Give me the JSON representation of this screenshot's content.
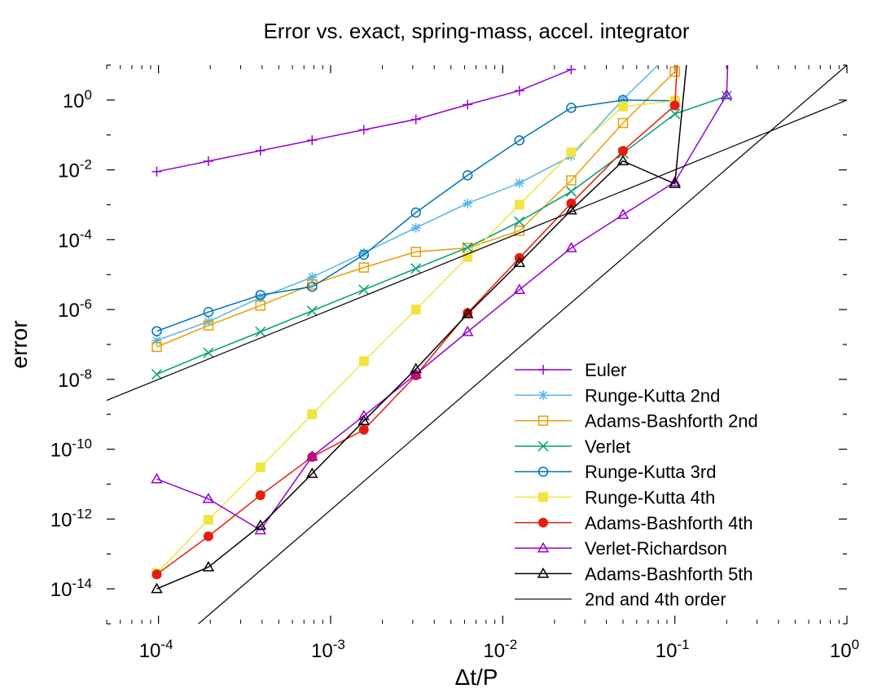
{
  "chart_data": {
    "type": "line",
    "title": "Error vs. exact, spring-mass, accel. integrator",
    "xlabel": "Δt/P",
    "ylabel": "error",
    "xscale": "log",
    "yscale": "log",
    "xlim": [
      5e-05,
      1
    ],
    "ylim": [
      1e-15,
      10
    ],
    "x_ticks": [
      {
        "value": 0.0001,
        "base": "10",
        "exp": "-4"
      },
      {
        "value": 0.001,
        "base": "10",
        "exp": "-3"
      },
      {
        "value": 0.01,
        "base": "10",
        "exp": "-2"
      },
      {
        "value": 0.1,
        "base": "10",
        "exp": "-1"
      },
      {
        "value": 1,
        "base": "10",
        "exp": "0"
      }
    ],
    "y_ticks": [
      {
        "value": 1e-14,
        "base": "10",
        "exp": "-14"
      },
      {
        "value": 1e-12,
        "base": "10",
        "exp": "-12"
      },
      {
        "value": 1e-10,
        "base": "10",
        "exp": "-10"
      },
      {
        "value": 1e-08,
        "base": "10",
        "exp": "-8"
      },
      {
        "value": 1e-06,
        "base": "10",
        "exp": "-6"
      },
      {
        "value": 0.0001,
        "base": "10",
        "exp": "-4"
      },
      {
        "value": 0.01,
        "base": "10",
        "exp": "-2"
      },
      {
        "value": 1,
        "base": "10",
        "exp": "0"
      }
    ],
    "grid": false,
    "legend_position": "bottom-right",
    "series": [
      {
        "name": "Euler",
        "color": "#9400d3",
        "marker": "plus",
        "points": [
          [
            9.77e-05,
            0.0089
          ],
          [
            0.000195,
            0.0178
          ],
          [
            0.000391,
            0.0355
          ],
          [
            0.000781,
            0.0708
          ],
          [
            0.00156,
            0.141
          ],
          [
            0.00313,
            0.28
          ],
          [
            0.00625,
            0.74
          ],
          [
            0.0125,
            1.85
          ],
          [
            0.025,
            7.5
          ]
        ]
      },
      {
        "name": "Runge-Kutta 2nd",
        "color": "#56b4e9",
        "marker": "star",
        "points": [
          [
            9.77e-05,
            1.3e-07
          ],
          [
            0.000195,
            4.5e-07
          ],
          [
            0.000391,
            2.2e-06
          ],
          [
            0.000781,
            8.5e-06
          ],
          [
            0.00156,
            4.2e-05
          ],
          [
            0.00313,
            0.00022
          ],
          [
            0.00625,
            0.0011
          ],
          [
            0.0125,
            0.0042
          ],
          [
            0.025,
            0.025
          ],
          [
            0.05,
            1.05
          ],
          [
            0.1,
            30
          ]
        ]
      },
      {
        "name": "Adams-Bashforth 2nd",
        "color": "#e69f00",
        "marker": "square-open",
        "points": [
          [
            9.77e-05,
            8.5e-08
          ],
          [
            0.000195,
            3.5e-07
          ],
          [
            0.000391,
            1.3e-06
          ],
          [
            0.000781,
            5.2e-06
          ],
          [
            0.00156,
            1.6e-05
          ],
          [
            0.00313,
            4.5e-05
          ],
          [
            0.00625,
            5.8e-05
          ],
          [
            0.0125,
            0.00018
          ],
          [
            0.025,
            0.005
          ],
          [
            0.05,
            0.22
          ],
          [
            0.1,
            6.5
          ],
          [
            0.105,
            40
          ]
        ]
      },
      {
        "name": "Verlet",
        "color": "#009e73",
        "marker": "cross",
        "points": [
          [
            9.77e-05,
            1.4e-08
          ],
          [
            0.000195,
            5.8e-08
          ],
          [
            0.000391,
            2.3e-07
          ],
          [
            0.000781,
            9.2e-07
          ],
          [
            0.00156,
            3.7e-06
          ],
          [
            0.00313,
            1.5e-05
          ],
          [
            0.00625,
            6e-05
          ],
          [
            0.0125,
            0.00033
          ],
          [
            0.025,
            0.0024
          ],
          [
            0.05,
            0.03
          ],
          [
            0.1,
            0.4
          ],
          [
            0.2,
            1.3
          ]
        ]
      },
      {
        "name": "Runge-Kutta 3rd",
        "color": "#0072b2",
        "marker": "circle-open",
        "points": [
          [
            9.77e-05,
            2.4e-07
          ],
          [
            0.000195,
            8.5e-07
          ],
          [
            0.000391,
            2.6e-06
          ],
          [
            0.000781,
            4.5e-06
          ],
          [
            0.00156,
            3.7e-05
          ],
          [
            0.00313,
            0.0006
          ],
          [
            0.00625,
            0.007
          ],
          [
            0.0125,
            0.07
          ],
          [
            0.025,
            0.6
          ],
          [
            0.05,
            1.0
          ],
          [
            0.1,
            0.95
          ]
        ]
      },
      {
        "name": "Runge-Kutta 4th",
        "color": "#f0e442",
        "marker": "square-filled",
        "points": [
          [
            9.77e-05,
            2.8e-14
          ],
          [
            0.000195,
            9.5e-13
          ],
          [
            0.000391,
            3e-11
          ],
          [
            0.000781,
            1e-09
          ],
          [
            0.00156,
            3.3e-08
          ],
          [
            0.00313,
            1e-06
          ],
          [
            0.00625,
            3.2e-05
          ],
          [
            0.0125,
            0.001
          ],
          [
            0.025,
            0.032
          ],
          [
            0.05,
            0.65
          ],
          [
            0.1,
            0.95
          ],
          [
            0.105,
            40
          ]
        ]
      },
      {
        "name": "Adams-Bashforth 4th",
        "color": "#e51e10",
        "marker": "circle-filled",
        "points": [
          [
            9.77e-05,
            2.6e-14
          ],
          [
            0.000195,
            3.2e-13
          ],
          [
            0.000391,
            4.8e-12
          ],
          [
            0.000781,
            6e-11
          ],
          [
            0.00156,
            3.6e-10
          ],
          [
            0.00313,
            1.3e-08
          ],
          [
            0.00625,
            8e-07
          ],
          [
            0.0125,
            3e-05
          ],
          [
            0.025,
            0.0011
          ],
          [
            0.05,
            0.035
          ],
          [
            0.1,
            0.7
          ],
          [
            0.105,
            40
          ]
        ]
      },
      {
        "name": "Verlet-Richardson",
        "color": "#9400d3",
        "marker": "triangle-open",
        "points": [
          [
            9.77e-05,
            1.4e-11
          ],
          [
            0.000195,
            3.8e-12
          ],
          [
            0.000391,
            4.8e-13
          ],
          [
            0.000781,
            6.2e-11
          ],
          [
            0.00156,
            9e-10
          ],
          [
            0.00313,
            1.4e-08
          ],
          [
            0.00625,
            2.3e-07
          ],
          [
            0.0125,
            3.7e-06
          ],
          [
            0.025,
            5.8e-05
          ],
          [
            0.05,
            0.00052
          ],
          [
            0.1,
            0.0045
          ],
          [
            0.2,
            1.4
          ],
          [
            0.205,
            40
          ]
        ]
      },
      {
        "name": "Adams-Bashforth 5th",
        "color": "#000000",
        "marker": "triangle-open",
        "points": [
          [
            9.77e-05,
            1e-14
          ],
          [
            0.000195,
            4.2e-14
          ],
          [
            0.000391,
            6.5e-13
          ],
          [
            0.000781,
            2e-11
          ],
          [
            0.00156,
            6.5e-10
          ],
          [
            0.00313,
            2e-08
          ],
          [
            0.00625,
            7.5e-07
          ],
          [
            0.0125,
            2.2e-05
          ],
          [
            0.025,
            0.0007
          ],
          [
            0.05,
            0.018
          ],
          [
            0.1,
            0.004
          ],
          [
            0.12,
            40
          ]
        ]
      },
      {
        "name": "2nd and 4th order",
        "color": "#000000",
        "marker": "none",
        "lines": [
          [
            [
              5e-05,
              2.5e-09
            ],
            [
              1,
              1
            ]
          ],
          [
            [
              8.91e-05,
              6.3e-17
            ],
            [
              1,
              10
            ]
          ]
        ]
      }
    ]
  }
}
